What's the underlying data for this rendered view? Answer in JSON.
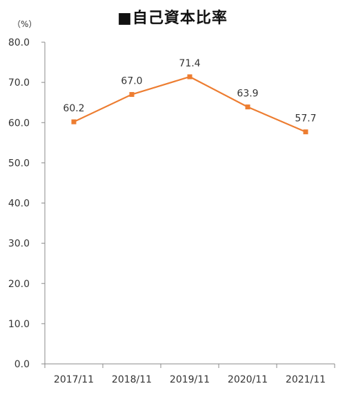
{
  "chart_data": {
    "type": "line",
    "title": "■自己資本比率",
    "ylabel": "（%）",
    "xlabel": "",
    "categories": [
      "2017/11",
      "2018/11",
      "2019/11",
      "2020/11",
      "2021/11"
    ],
    "series": [
      {
        "values": [
          60.2,
          67.0,
          71.4,
          63.9,
          57.7
        ]
      }
    ],
    "data_labels": [
      "60.2",
      "67.0",
      "71.4",
      "63.9",
      "57.7"
    ],
    "y_ticks": [
      "0.0",
      "10.0",
      "20.0",
      "30.0",
      "40.0",
      "50.0",
      "60.0",
      "70.0",
      "80.0"
    ],
    "ylim": [
      0,
      80
    ],
    "grid": false,
    "legend": "none",
    "colors": {
      "series": "#ED7D31",
      "axis": "#888888",
      "text": "#333333"
    }
  }
}
